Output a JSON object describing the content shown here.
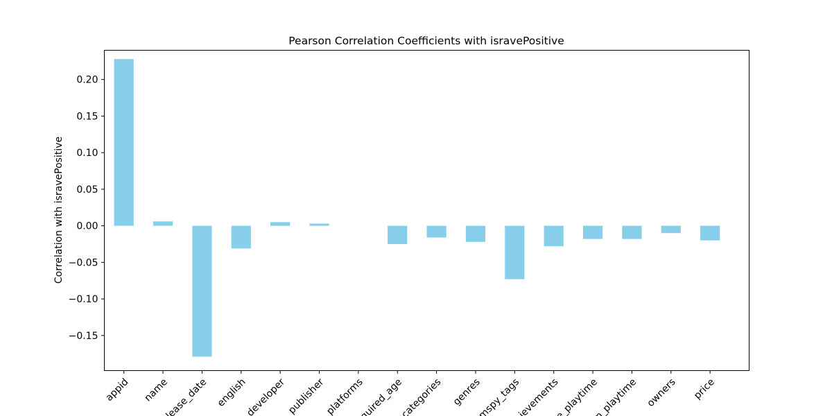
{
  "chart_data": {
    "type": "bar",
    "title": "Pearson Correlation Coefficients with isravePositive",
    "xlabel": "",
    "ylabel": "Correlation with isravePositive",
    "categories": [
      "appid",
      "name",
      "release_date",
      "english",
      "developer",
      "publisher",
      "platforms",
      "required_age",
      "categories",
      "genres",
      "steamspy_tags",
      "achievements",
      "average_playtime",
      "median_playtime",
      "owners",
      "price"
    ],
    "tick_labels_visible": [
      "appid",
      "name",
      "lease_date",
      "english",
      "developer",
      "publisher",
      "platforms",
      "quired_age",
      "categories",
      "genres",
      "mspy_tags",
      "ievements",
      "e_playtime",
      "n_playtime",
      "owners",
      "price"
    ],
    "values": [
      0.228,
      0.006,
      -0.179,
      -0.031,
      0.005,
      0.003,
      0.0,
      -0.025,
      -0.016,
      -0.022,
      -0.073,
      -0.028,
      -0.018,
      -0.018,
      -0.01,
      -0.02
    ],
    "ylim": [
      -0.198,
      0.24
    ],
    "yticks": [
      -0.15,
      -0.1,
      -0.05,
      0.0,
      0.05,
      0.1,
      0.15,
      0.2
    ],
    "ytick_labels": [
      "−0.15",
      "−0.10",
      "−0.05",
      "0.00",
      "0.05",
      "0.10",
      "0.15",
      "0.20"
    ],
    "bar_color": "#87ceeb",
    "grid": false,
    "legend": "none"
  }
}
